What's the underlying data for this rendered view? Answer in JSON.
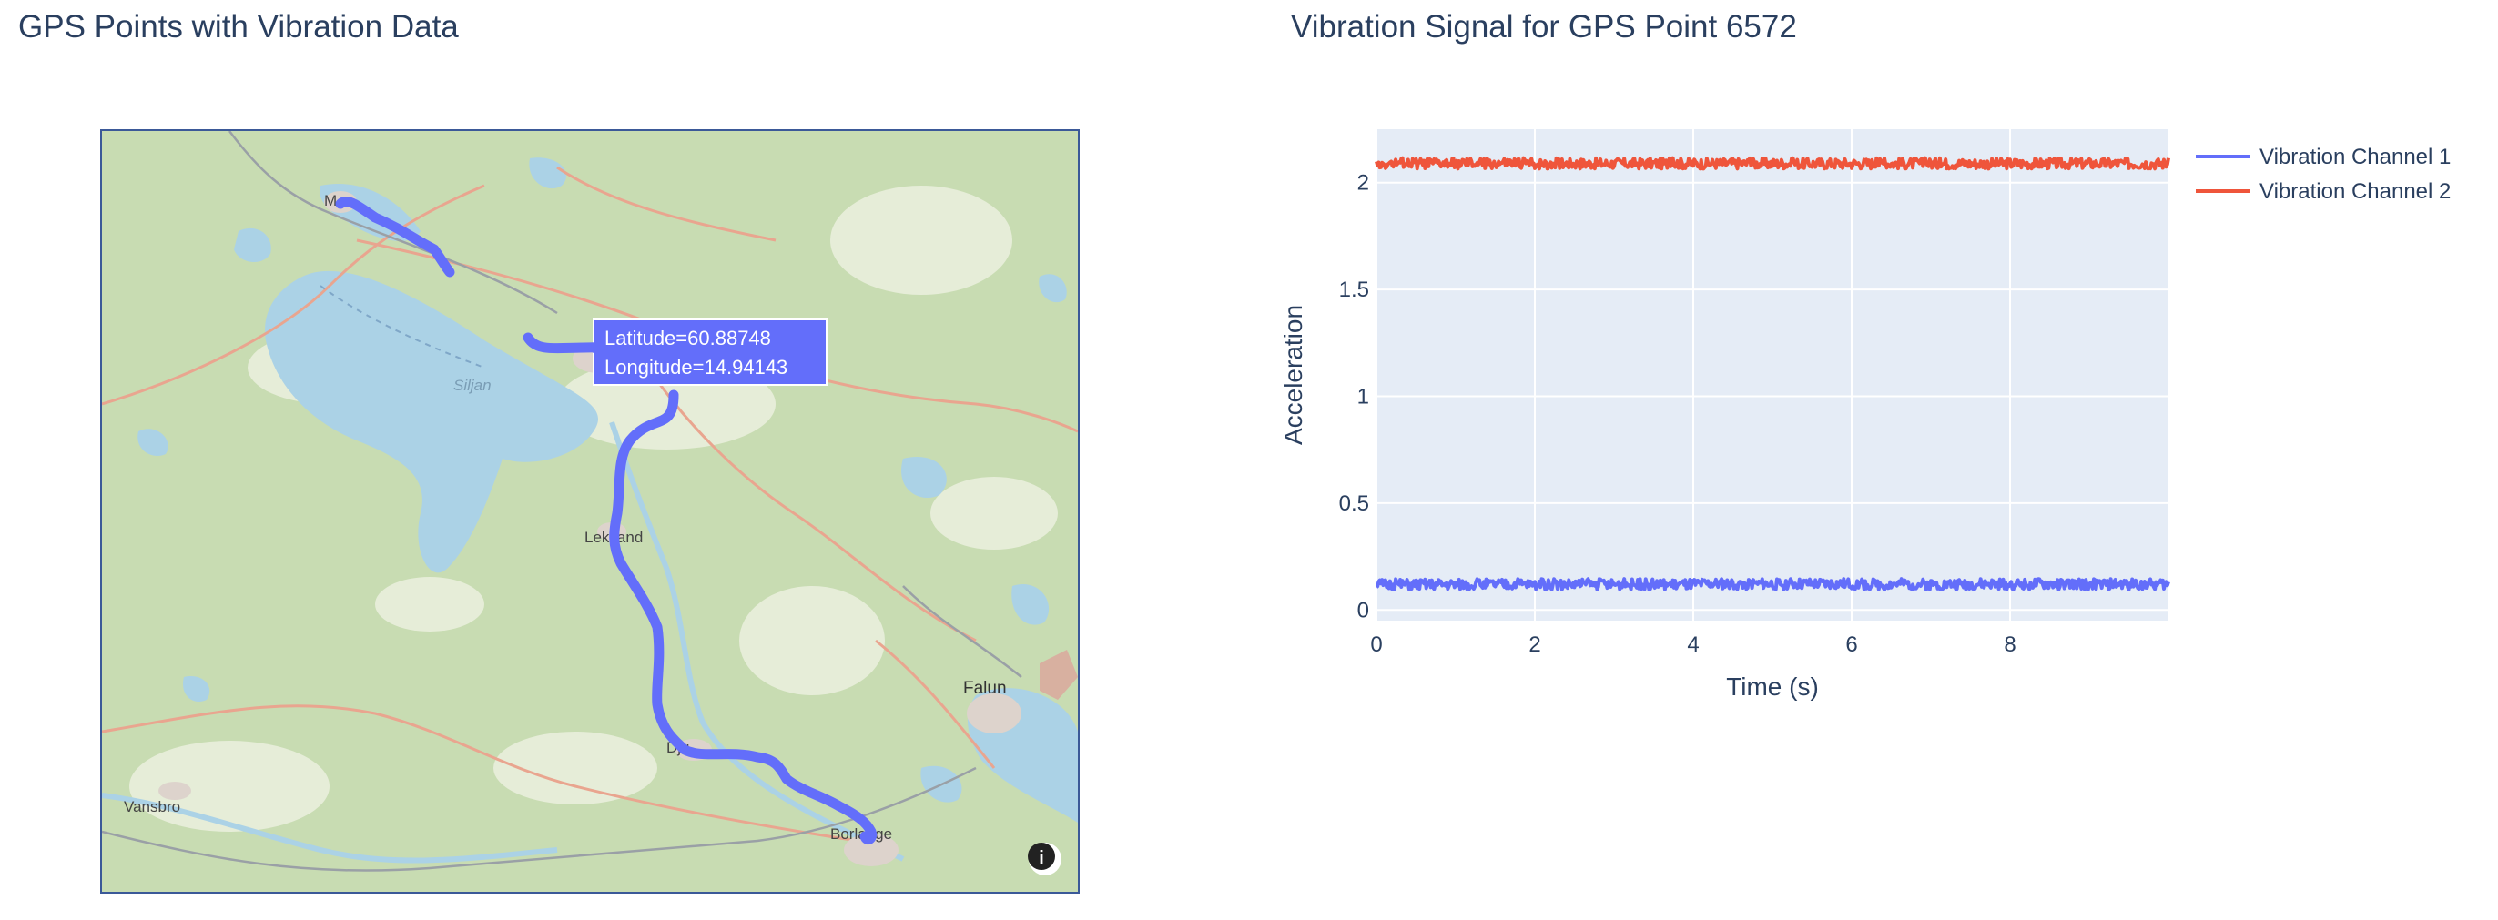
{
  "map": {
    "title": "GPS Points with Vibration Data",
    "tooltip": {
      "latitude_text": "Latitude=60.88748",
      "longitude_text": "Longitude=14.94143"
    },
    "place_labels": {
      "mora": "M",
      "siljan": "Siljan",
      "leksand": "Leksand",
      "djura": "Dju",
      "borlange": "Borlange",
      "falun": "Falun",
      "vansbro": "Vansbro"
    },
    "info_icon": "info-icon",
    "route_color": "#636efa"
  },
  "chart": {
    "title": "Vibration Signal for GPS Point 6572"
  },
  "chart_data": {
    "type": "line",
    "title": "Vibration Signal for GPS Point 6572",
    "xlabel": "Time (s)",
    "ylabel": "Acceleration",
    "xlim": [
      0,
      10
    ],
    "ylim": [
      -0.05,
      2.25
    ],
    "x_ticks": [
      0,
      2,
      4,
      6,
      8
    ],
    "y_ticks": [
      0,
      0.5,
      1,
      1.5,
      2
    ],
    "grid": true,
    "legend_position": "top-right",
    "series": [
      {
        "name": "Vibration Channel 1",
        "color": "#636efa",
        "mean": 0.12,
        "noise_amplitude": 0.025,
        "x_range": [
          0,
          10
        ]
      },
      {
        "name": "Vibration Channel 2",
        "color": "#ef553b",
        "mean": 2.09,
        "noise_amplitude": 0.025,
        "x_range": [
          0,
          10
        ]
      }
    ]
  }
}
